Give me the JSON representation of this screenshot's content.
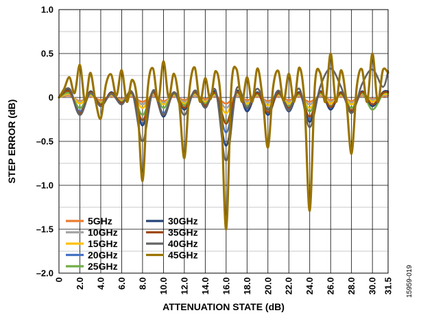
{
  "chart_data": {
    "type": "line",
    "xlabel": "ATTENUATION STATE (dB)",
    "ylabel": "STEP ERROR (dB)",
    "xlim": [
      0,
      31.5
    ],
    "ylim": [
      -2.0,
      1.0
    ],
    "xticks": [
      "0",
      "2.0",
      "4.0",
      "6.0",
      "8.0",
      "10.0",
      "12.0",
      "14.0",
      "16.0",
      "18.0",
      "20.0",
      "22.0",
      "24.0",
      "26.0",
      "28.0",
      "30.0",
      "31.5"
    ],
    "yticks": [
      "1.0",
      "0.5",
      "0",
      "–0.5",
      "–1.0",
      "–1.5",
      "–2.0"
    ],
    "grid": true,
    "legend_position": "bottom-left",
    "figure_id": "15959-019",
    "series": [
      {
        "name": "5GHz",
        "color": "#E97C30",
        "x": [
          0,
          1,
          2,
          3,
          4,
          5,
          6,
          7,
          8,
          9,
          10,
          11,
          12,
          13,
          14,
          15,
          16,
          17,
          18,
          19,
          20,
          21,
          22,
          23,
          24,
          25,
          26,
          27,
          28,
          29,
          30,
          31,
          31.5
        ],
        "y": [
          0,
          0.02,
          -0.04,
          0.01,
          -0.03,
          0.01,
          -0.02,
          0.01,
          -0.05,
          0.02,
          -0.04,
          0.01,
          -0.03,
          0.02,
          -0.02,
          0.01,
          -0.07,
          0.02,
          -0.03,
          0.01,
          -0.04,
          0.01,
          -0.03,
          0.01,
          -0.05,
          0.02,
          -0.03,
          0.01,
          -0.04,
          0.02,
          -0.02,
          0.01,
          0.02
        ]
      },
      {
        "name": "10GHz",
        "color": "#A5A5A5",
        "x": [
          0,
          1,
          2,
          3,
          4,
          5,
          6,
          7,
          8,
          9,
          10,
          11,
          12,
          13,
          14,
          15,
          16,
          17,
          18,
          19,
          20,
          21,
          22,
          23,
          24,
          25,
          26,
          27,
          28,
          29,
          30,
          31,
          31.5
        ],
        "y": [
          0,
          0.03,
          -0.05,
          0.02,
          -0.05,
          0.02,
          -0.03,
          0.02,
          -0.08,
          0.03,
          -0.06,
          0.02,
          -0.05,
          0.03,
          -0.04,
          0.02,
          -0.12,
          0.03,
          -0.05,
          0.02,
          -0.06,
          0.02,
          -0.05,
          0.02,
          -0.08,
          0.03,
          -0.05,
          0.02,
          -0.06,
          0.03,
          -0.03,
          0.02,
          0.03
        ]
      },
      {
        "name": "15GHz",
        "color": "#FFC000",
        "x": [
          0,
          1,
          2,
          3,
          4,
          5,
          6,
          7,
          8,
          9,
          10,
          11,
          12,
          13,
          14,
          15,
          16,
          17,
          18,
          19,
          20,
          21,
          22,
          23,
          24,
          25,
          26,
          27,
          28,
          29,
          30,
          31,
          31.5
        ],
        "y": [
          0,
          0.04,
          -0.07,
          0.03,
          -0.06,
          0.03,
          -0.04,
          0.03,
          -0.12,
          0.04,
          -0.08,
          0.03,
          -0.07,
          0.04,
          -0.05,
          0.03,
          -0.18,
          0.04,
          -0.07,
          0.03,
          -0.09,
          0.03,
          -0.07,
          0.03,
          -0.12,
          0.04,
          -0.07,
          0.03,
          -0.08,
          0.04,
          -0.05,
          0.03,
          0.04
        ]
      },
      {
        "name": "20GHz",
        "color": "#4472C4",
        "x": [
          0,
          1,
          2,
          3,
          4,
          5,
          6,
          7,
          8,
          9,
          10,
          11,
          12,
          13,
          14,
          15,
          16,
          17,
          18,
          19,
          20,
          21,
          22,
          23,
          24,
          25,
          26,
          27,
          28,
          29,
          30,
          31,
          31.5
        ],
        "y": [
          0,
          0.06,
          -0.16,
          0.05,
          -0.09,
          0.05,
          -0.06,
          0.05,
          -0.3,
          0.06,
          -0.18,
          0.05,
          -0.12,
          0.06,
          -0.1,
          0.05,
          -0.4,
          0.06,
          -0.14,
          0.05,
          -0.18,
          0.05,
          -0.14,
          0.05,
          -0.25,
          0.06,
          -0.12,
          0.05,
          -0.16,
          0.06,
          -0.1,
          0.05,
          0.06
        ]
      },
      {
        "name": "25GHz",
        "color": "#70AD47",
        "x": [
          0,
          1,
          2,
          3,
          4,
          5,
          6,
          7,
          8,
          9,
          10,
          11,
          12,
          13,
          14,
          15,
          16,
          17,
          18,
          19,
          20,
          21,
          22,
          23,
          24,
          25,
          26,
          27,
          28,
          29,
          30,
          31,
          31.5
        ],
        "y": [
          0,
          0.05,
          -0.12,
          0.04,
          -0.07,
          0.04,
          -0.05,
          0.04,
          -0.2,
          0.05,
          -0.12,
          0.04,
          -0.09,
          0.05,
          -0.07,
          0.04,
          -0.28,
          0.05,
          -0.1,
          0.04,
          -0.13,
          0.04,
          -0.1,
          0.04,
          -0.16,
          0.05,
          -0.1,
          0.04,
          -0.12,
          0.05,
          -0.14,
          0.04,
          0.05
        ]
      },
      {
        "name": "30GHz",
        "color": "#264478",
        "x": [
          0,
          1,
          2,
          3,
          4,
          5,
          6,
          7,
          8,
          9,
          10,
          11,
          12,
          13,
          14,
          15,
          16,
          17,
          18,
          19,
          20,
          21,
          22,
          23,
          24,
          25,
          26,
          27,
          28,
          29,
          30,
          31,
          31.5
        ],
        "y": [
          0,
          0.08,
          -0.2,
          0.07,
          -0.1,
          0.06,
          -0.07,
          0.06,
          -0.32,
          0.07,
          -0.22,
          0.06,
          -0.14,
          0.07,
          -0.11,
          0.06,
          -0.55,
          0.07,
          -0.16,
          0.06,
          -0.2,
          0.06,
          -0.16,
          0.06,
          -0.28,
          0.07,
          -0.14,
          0.06,
          -0.17,
          0.07,
          -0.1,
          0.06,
          0.07
        ]
      },
      {
        "name": "35GHz",
        "color": "#9E480E",
        "x": [
          0,
          1,
          2,
          3,
          4,
          5,
          6,
          7,
          8,
          9,
          10,
          11,
          12,
          13,
          14,
          15,
          16,
          17,
          18,
          19,
          20,
          21,
          22,
          23,
          24,
          25,
          26,
          27,
          28,
          29,
          30,
          31,
          31.5
        ],
        "y": [
          0,
          0.07,
          -0.18,
          0.06,
          -0.08,
          0.05,
          -0.06,
          0.05,
          -0.26,
          0.06,
          -0.2,
          0.05,
          -0.12,
          0.06,
          -0.09,
          0.05,
          -0.3,
          0.06,
          -0.12,
          0.05,
          -0.17,
          0.05,
          -0.12,
          0.05,
          -0.22,
          0.06,
          -0.11,
          0.05,
          -0.15,
          0.06,
          -0.08,
          0.05,
          0.06
        ]
      },
      {
        "name": "40GHz",
        "color": "#636363",
        "x": [
          0,
          1,
          2,
          3,
          4,
          5,
          6,
          7,
          8,
          9,
          10,
          11,
          12,
          13,
          14,
          15,
          16,
          17,
          18,
          19,
          20,
          21,
          22,
          23,
          24,
          25,
          26,
          27,
          28,
          29,
          30,
          31,
          31.5
        ],
        "y": [
          0,
          0.1,
          -0.2,
          0.05,
          -0.1,
          0.04,
          -0.08,
          0.06,
          -0.5,
          0.08,
          -0.2,
          0.06,
          -0.2,
          0.08,
          -0.12,
          0.08,
          -0.72,
          0.1,
          -0.12,
          0.1,
          -0.14,
          0.08,
          -0.15,
          0.1,
          -0.34,
          0.12,
          0.33,
          0.12,
          -0.18,
          0.15,
          0.32,
          0.12,
          0.3
        ]
      },
      {
        "name": "45GHz",
        "color": "#997300",
        "x": [
          0,
          0.5,
          1,
          1.5,
          2,
          2.5,
          3,
          3.5,
          4,
          4.5,
          5,
          5.5,
          6,
          6.5,
          7,
          7.5,
          8,
          8.5,
          9,
          9.5,
          10,
          10.5,
          11,
          11.5,
          12,
          12.5,
          13,
          13.5,
          14,
          14.5,
          15,
          15.5,
          16,
          16.5,
          17,
          17.5,
          18,
          18.5,
          19,
          19.5,
          20,
          20.5,
          21,
          21.5,
          22,
          22.5,
          23,
          23.5,
          24,
          24.5,
          25,
          25.5,
          26,
          26.5,
          27,
          27.5,
          28,
          28.5,
          29,
          29.5,
          30,
          30.5,
          31,
          31.5
        ],
        "y": [
          0.0,
          0.1,
          0.23,
          0.05,
          0.37,
          -0.05,
          0.28,
          -0.04,
          -0.24,
          0.15,
          0.26,
          0.02,
          0.31,
          -0.05,
          0.2,
          -0.05,
          -0.95,
          0.1,
          0.33,
          -0.04,
          0.41,
          0.0,
          0.27,
          -0.05,
          -0.69,
          0.1,
          0.34,
          -0.05,
          0.22,
          -0.02,
          0.3,
          -0.05,
          -1.5,
          0.12,
          0.32,
          -0.05,
          0.23,
          -0.05,
          0.33,
          -0.02,
          -0.57,
          0.12,
          0.3,
          -0.04,
          0.27,
          -0.05,
          0.34,
          -0.05,
          -1.29,
          0.15,
          0.28,
          -0.05,
          0.5,
          -0.05,
          0.31,
          -0.03,
          -0.64,
          0.12,
          0.32,
          -0.05,
          0.5,
          -0.05,
          0.31,
          0.28
        ]
      }
    ]
  }
}
